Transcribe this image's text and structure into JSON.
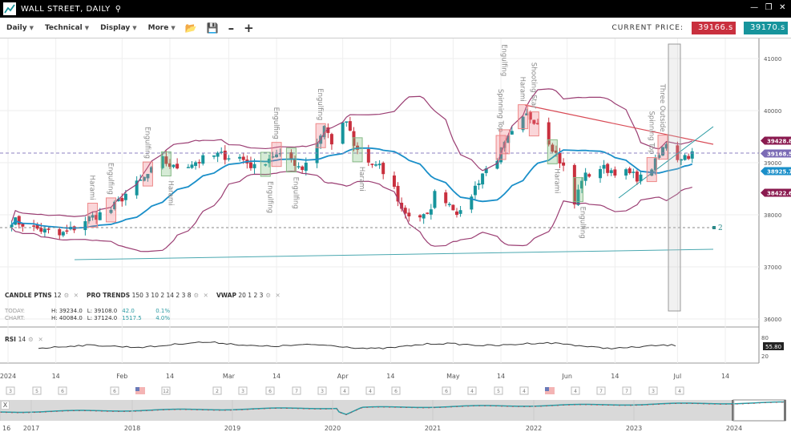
{
  "window": {
    "title": "WALL STREET, DAILY",
    "search_icon": "search-icon",
    "controls": [
      "minimize-icon",
      "restore-icon",
      "close-icon"
    ]
  },
  "toolbar": {
    "menus": [
      "Daily",
      "Technical",
      "Display",
      "More"
    ],
    "icons": [
      "folder-open-icon",
      "save-icon",
      "zoom-out-icon",
      "zoom-in-icon"
    ],
    "current_price_label": "CURRENT PRICE:",
    "bid": "39166.s",
    "ask": "39170.s",
    "bid_color": "#c9303e",
    "ask_color": "#17949c"
  },
  "indicators": {
    "candle": {
      "name": "CANDLE PTNS",
      "params": "12"
    },
    "pro": {
      "name": "PRO TRENDS",
      "params": "150 3 10 2 14 2 3 8"
    },
    "vwap": {
      "name": "VWAP",
      "params": "20 1 2 3"
    },
    "rsi": {
      "name": "RSI",
      "params": "14",
      "value": "55.80",
      "axis": [
        "80",
        "20"
      ]
    }
  },
  "stats": {
    "today": {
      "label": "TODAY:",
      "h": "H: 39234.0",
      "l": "L: 39108.0",
      "chg": "42.0",
      "pct": "0.1%"
    },
    "chart": {
      "label": "CHART:",
      "h": "H: 40084.0",
      "l": "L: 37124.0",
      "chg": "1517.5",
      "pct": "4.0%"
    }
  },
  "chart_data": {
    "type": "candlestick",
    "y_ticks": [
      "41000",
      "40000",
      "39000",
      "38000",
      "37000",
      "36000"
    ],
    "x_ticks": [
      "2024",
      "14",
      "Feb",
      "14",
      "Mar",
      "14",
      "Apr",
      "14",
      "May",
      "14",
      "Jun",
      "14",
      "Jul",
      "14"
    ],
    "approx_closes": [
      [
        "2024-01-02",
        37900
      ],
      [
        "2024-01-08",
        37750
      ],
      [
        "2024-01-15",
        37600
      ],
      [
        "2024-01-19",
        37750
      ],
      [
        "2024-01-22",
        37900
      ],
      [
        "2024-01-29",
        38100
      ],
      [
        "2024-02-02",
        38400
      ],
      [
        "2024-02-07",
        38700
      ],
      [
        "2024-02-12",
        39050
      ],
      [
        "2024-02-15",
        38900
      ],
      [
        "2024-02-20",
        39000
      ],
      [
        "2024-02-27",
        39150
      ],
      [
        "2024-03-04",
        39100
      ],
      [
        "2024-03-08",
        38900
      ],
      [
        "2024-03-13",
        39150
      ],
      [
        "2024-03-18",
        39050
      ],
      [
        "2024-03-21",
        38900
      ],
      [
        "2024-03-25",
        39400
      ],
      [
        "2024-03-27",
        39700
      ],
      [
        "2024-03-29",
        39400
      ],
      [
        "2024-04-02",
        39800
      ],
      [
        "2024-04-04",
        39300
      ],
      [
        "2024-04-08",
        39000
      ],
      [
        "2024-04-11",
        38900
      ],
      [
        "2024-04-15",
        38500
      ],
      [
        "2024-04-17",
        38100
      ],
      [
        "2024-04-19",
        38000
      ],
      [
        "2024-04-24",
        37950
      ],
      [
        "2024-04-26",
        38400
      ],
      [
        "2024-04-29",
        38300
      ],
      [
        "2024-05-03",
        38000
      ],
      [
        "2024-05-06",
        38400
      ],
      [
        "2024-05-09",
        38800
      ],
      [
        "2024-05-13",
        39100
      ],
      [
        "2024-05-16",
        39450
      ],
      [
        "2024-05-21",
        39900
      ],
      [
        "2024-05-24",
        39800
      ],
      [
        "2024-05-28",
        39300
      ],
      [
        "2024-05-31",
        38900
      ],
      [
        "2024-06-03",
        38200
      ],
      [
        "2024-06-05",
        38700
      ],
      [
        "2024-06-10",
        38900
      ],
      [
        "2024-06-17",
        38800
      ],
      [
        "2024-06-21",
        38700
      ],
      [
        "2024-06-25",
        39000
      ],
      [
        "2024-06-28",
        39400
      ],
      [
        "2024-07-01",
        39100
      ],
      [
        "2024-07-05",
        39170
      ]
    ],
    "price_labels": [
      {
        "value": "39428.8",
        "color": "#8a1a4f"
      },
      {
        "value": "39168.5",
        "color": "#7b6bb5"
      },
      {
        "value": "38925.7",
        "color": "#1a8fc9"
      },
      {
        "value": "38422.6",
        "color": "#8a1a4f"
      }
    ],
    "patterns": [
      {
        "label": "Harami",
        "date": "2024-01-24",
        "kind": "bear"
      },
      {
        "label": "Engulfing",
        "date": "2024-01-29",
        "kind": "bear"
      },
      {
        "label": "Engulfing",
        "date": "2024-02-08",
        "kind": "bear"
      },
      {
        "label": "Harami",
        "date": "2024-02-13",
        "kind": "bull"
      },
      {
        "label": "Engulfing",
        "date": "2024-03-11",
        "kind": "bull"
      },
      {
        "label": "Engulfing",
        "date": "2024-03-14",
        "kind": "bear"
      },
      {
        "label": "Engulfing",
        "date": "2024-03-18",
        "kind": "bull"
      },
      {
        "label": "Engulfing",
        "date": "2024-03-26",
        "kind": "bear"
      },
      {
        "label": "Harami",
        "date": "2024-04-05",
        "kind": "bull"
      },
      {
        "label": "Spinning Top",
        "date": "2024-05-14",
        "kind": "bear"
      },
      {
        "label": "Engulfing",
        "date": "2024-05-15",
        "kind": "bear"
      },
      {
        "label": "Harami",
        "date": "2024-05-20",
        "kind": "bear"
      },
      {
        "label": "Shooting Star",
        "date": "2024-05-23",
        "kind": "bear"
      },
      {
        "label": "Harami",
        "date": "2024-05-28",
        "kind": "bull"
      },
      {
        "label": "Engulfing",
        "date": "2024-06-04",
        "kind": "bull"
      },
      {
        "label": "Spinning Top",
        "date": "2024-06-24",
        "kind": "bear"
      },
      {
        "label": "Three Outside",
        "date": "2024-06-27",
        "kind": "bear"
      }
    ],
    "line_marker": "2",
    "bands": {
      "upper_color": "#9b3e73",
      "middle_color": "#1a8fc9",
      "lower_color": "#9b3e73"
    },
    "up_color": "#17949c",
    "down_color": "#c9303e"
  },
  "calendar_events": [
    "3",
    "5",
    "6",
    "6",
    "flag",
    "12",
    "2",
    "3",
    "6",
    "7",
    "3",
    "4",
    "4",
    "6",
    "6",
    "4",
    "5",
    "4",
    "flag",
    "4",
    "7",
    "7",
    "3",
    "4"
  ],
  "navigator": {
    "close": "X",
    "years": [
      "16",
      "2017",
      "2018",
      "2019",
      "2020",
      "2021",
      "2022",
      "2023",
      "2024"
    ]
  }
}
